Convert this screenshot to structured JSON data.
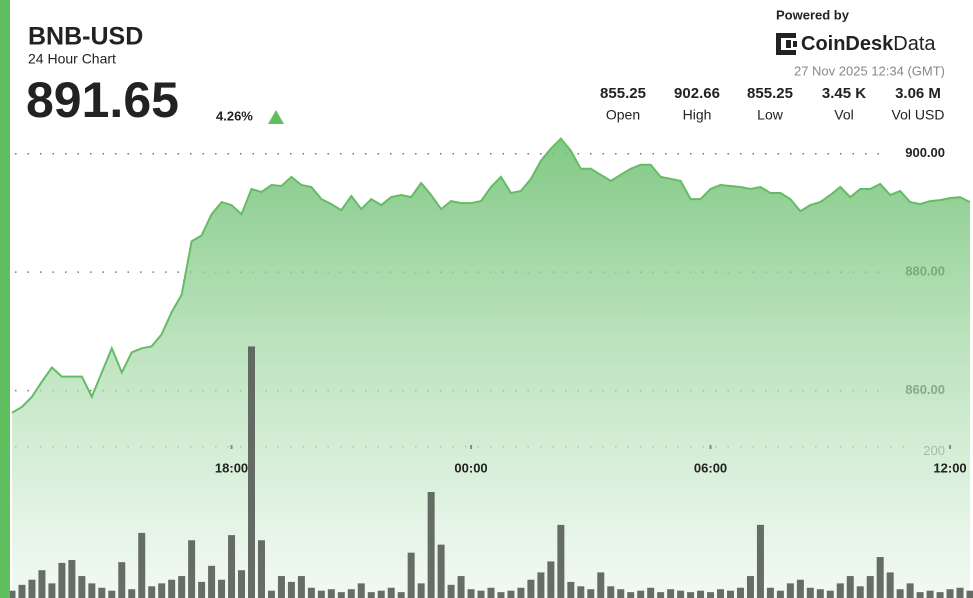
{
  "header": {
    "symbol": "BNB-USD",
    "subtitle": "24 Hour Chart",
    "price": "891.65",
    "change": "4.26%",
    "powered_by": "Powered by",
    "brand": "CoinDesk",
    "brand_suffix": "Data",
    "timestamp": "27 Nov 2025 12:34 (GMT)",
    "stats": [
      {
        "value": "855.25",
        "label": "Open"
      },
      {
        "value": "902.66",
        "label": "High"
      },
      {
        "value": "855.25",
        "label": "Low"
      },
      {
        "value": "3.45 K",
        "label": "Vol"
      },
      {
        "value": "3.06 M",
        "label": "Vol USD"
      }
    ]
  },
  "chart_data": {
    "type": "area",
    "x": [
      "12:30",
      "12:45",
      "13:00",
      "13:15",
      "13:30",
      "13:45",
      "14:00",
      "14:15",
      "14:30",
      "14:45",
      "15:00",
      "15:15",
      "15:30",
      "15:45",
      "16:00",
      "16:15",
      "16:30",
      "16:45",
      "17:00",
      "17:15",
      "17:30",
      "17:45",
      "18:00",
      "18:15",
      "18:30",
      "18:45",
      "19:00",
      "19:15",
      "19:30",
      "19:45",
      "20:00",
      "20:15",
      "20:30",
      "20:45",
      "21:00",
      "21:15",
      "21:30",
      "21:45",
      "22:00",
      "22:15",
      "22:30",
      "22:45",
      "23:00",
      "23:15",
      "23:30",
      "23:45",
      "00:00",
      "00:15",
      "00:30",
      "00:45",
      "01:00",
      "01:15",
      "01:30",
      "01:45",
      "02:00",
      "02:15",
      "02:30",
      "02:45",
      "03:00",
      "03:15",
      "03:30",
      "03:45",
      "04:00",
      "04:15",
      "04:30",
      "04:45",
      "05:00",
      "05:15",
      "05:30",
      "05:45",
      "06:00",
      "06:15",
      "06:30",
      "06:45",
      "07:00",
      "07:15",
      "07:30",
      "07:45",
      "08:00",
      "08:15",
      "08:30",
      "08:45",
      "09:00",
      "09:15",
      "09:30",
      "09:45",
      "10:00",
      "10:15",
      "10:30",
      "10:45",
      "11:00",
      "11:15",
      "11:30",
      "11:45",
      "12:00",
      "12:15",
      "12:30"
    ],
    "series": [
      {
        "color": "#66bb66",
        "values": [
          856.26,
          857.28,
          858.98,
          861.53,
          863.91,
          862.38,
          862.38,
          862.38,
          858.98,
          863.06,
          867.15,
          863.06,
          866.47,
          867.15,
          867.49,
          869.53,
          873.28,
          876.17,
          885.19,
          886.21,
          889.79,
          891.83,
          891.32,
          889.79,
          894.04,
          893.53,
          894.72,
          894.55,
          896.09,
          894.72,
          894.38,
          892.34,
          891.49,
          890.47,
          892.85,
          890.64,
          892.34,
          891.32,
          892.68,
          893.02,
          892.68,
          895.06,
          893.02,
          890.64,
          892.0,
          891.66,
          891.66,
          892.0,
          894.38,
          896.09,
          893.36,
          893.7,
          895.74,
          898.81,
          900.85,
          902.55,
          900.51,
          897.45,
          897.45,
          896.43,
          895.4,
          896.43,
          897.45,
          898.13,
          898.13,
          896.09,
          895.74,
          895.4,
          892.34,
          892.34,
          894.04,
          894.72,
          894.55,
          894.38,
          894.04,
          894.38,
          893.36,
          893.36,
          892.34,
          890.3,
          891.32,
          891.83,
          893.02,
          894.38,
          892.68,
          894.04,
          894.04,
          894.89,
          893.02,
          893.7,
          891.83,
          891.49,
          892.0,
          892.17,
          892.51,
          892.68,
          891.83
        ]
      },
      {
        "type": "bar",
        "axis": "y2",
        "color": "#575c57",
        "values": [
          10,
          18,
          25,
          38,
          20,
          48,
          52,
          30,
          20,
          14,
          10,
          49,
          12,
          89,
          16,
          20,
          25,
          30,
          79,
          22,
          44,
          25,
          86,
          38,
          344,
          79,
          10,
          30,
          22,
          30,
          14,
          10,
          12,
          8,
          12,
          20,
          8,
          10,
          14,
          8,
          62,
          20,
          145,
          73,
          18,
          30,
          12,
          10,
          14,
          8,
          10,
          14,
          25,
          35,
          50,
          100,
          22,
          16,
          12,
          35,
          16,
          12,
          8,
          10,
          14,
          8,
          12,
          10,
          8,
          10,
          8,
          12,
          10,
          14,
          30,
          100,
          14,
          10,
          20,
          25,
          14,
          12,
          10,
          20,
          30,
          16,
          30,
          56,
          35,
          12,
          20,
          8,
          10,
          8,
          12,
          14,
          10
        ]
      }
    ],
    "xticks": [
      "18:00",
      "00:00",
      "06:00",
      "12:00"
    ],
    "ylim": [
      825,
      904
    ],
    "yticks": [
      {
        "value": 860,
        "label": "860.00"
      },
      {
        "value": 880,
        "label": "880.00"
      },
      {
        "value": 900,
        "label": "900.00"
      }
    ],
    "y2lim": [
      0,
      640
    ],
    "y2ticks": [
      200
    ],
    "grid": true
  }
}
